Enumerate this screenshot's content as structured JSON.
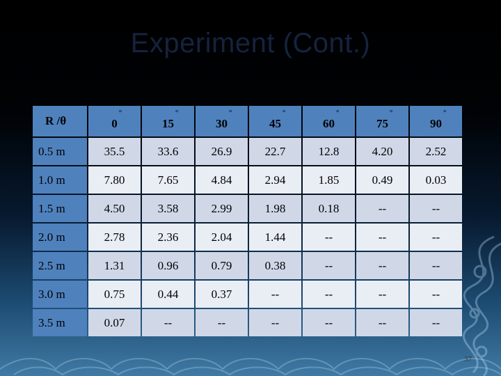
{
  "slide": {
    "title": "Experiment (Cont.)",
    "page_number": "37"
  },
  "table": {
    "corner_label": "R /θ",
    "columns": [
      "0",
      "15",
      "30",
      "45",
      "60",
      "75",
      "90"
    ],
    "degree_symbol": "°",
    "rows": [
      {
        "label": "0.5 m",
        "values": [
          "35.5",
          "33.6",
          "26.9",
          "22.7",
          "12.8",
          "4.20",
          "2.52"
        ]
      },
      {
        "label": "1.0 m",
        "values": [
          "7.80",
          "7.65",
          "4.84",
          "2.94",
          "1.85",
          "0.49",
          "0.03"
        ]
      },
      {
        "label": "1.5 m",
        "values": [
          "4.50",
          "3.58",
          "2.99",
          "1.98",
          "0.18",
          "--",
          "--"
        ]
      },
      {
        "label": "2.0 m",
        "values": [
          "2.78",
          "2.36",
          "2.04",
          "1.44",
          "--",
          "--",
          "--"
        ]
      },
      {
        "label": "2.5 m",
        "values": [
          "1.31",
          "0.96",
          "0.79",
          "0.38",
          "--",
          "--",
          "--"
        ]
      },
      {
        "label": "3.0 m",
        "values": [
          "0.75",
          "0.44",
          "0.37",
          "--",
          "--",
          "--",
          "--"
        ]
      },
      {
        "label": "3.5 m",
        "values": [
          "0.07",
          "--",
          "--",
          "--",
          "--",
          "--",
          "--"
        ]
      }
    ]
  },
  "colors": {
    "header_fill": "#4f81bd",
    "row_odd_fill": "#d0d8e8",
    "row_even_fill": "#e9edf4",
    "title_color": "#15233e"
  }
}
